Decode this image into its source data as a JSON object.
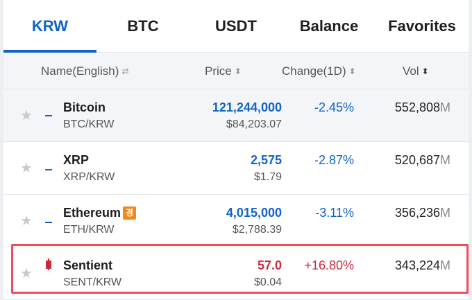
{
  "tabs": [
    {
      "label": "KRW",
      "active": true
    },
    {
      "label": "BTC",
      "active": false
    },
    {
      "label": "USDT",
      "active": false
    },
    {
      "label": "Balance",
      "active": false
    },
    {
      "label": "Favorites",
      "active": false
    }
  ],
  "columns": {
    "name": "Name(English)",
    "price": "Price",
    "change": "Change(1D)",
    "vol": "Vol"
  },
  "rows": [
    {
      "name": "Bitcoin",
      "pair": "BTC/KRW",
      "price": "121,244,000",
      "usd": "$84,203.07",
      "change": "-2.45%",
      "vol": "552,808",
      "vol_unit": "M",
      "trend": "down",
      "badge": ""
    },
    {
      "name": "XRP",
      "pair": "XRP/KRW",
      "price": "2,575",
      "usd": "$1.79",
      "change": "-2.87%",
      "vol": "520,687",
      "vol_unit": "M",
      "trend": "down",
      "badge": ""
    },
    {
      "name": "Ethereum",
      "pair": "ETH/KRW",
      "price": "4,015,000",
      "usd": "$2,788.39",
      "change": "-3.11%",
      "vol": "356,236",
      "vol_unit": "M",
      "trend": "down",
      "badge": "경"
    },
    {
      "name": "Sentient",
      "pair": "SENT/KRW",
      "price": "57.0",
      "usd": "$0.04",
      "change": "+16.80%",
      "vol": "343,224",
      "vol_unit": "M",
      "trend": "up",
      "badge": ""
    }
  ],
  "colors": {
    "accent": "#1263c7",
    "down": "#1263c7",
    "up": "#d0283a",
    "highlight": "#f14b5d"
  },
  "icons": {
    "star": "star-icon",
    "sort": "sort-icon"
  }
}
